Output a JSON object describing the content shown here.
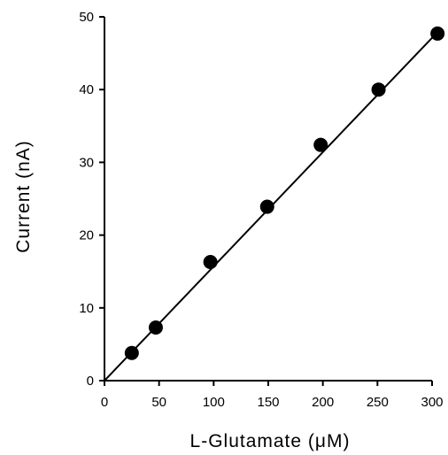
{
  "chart_data": {
    "type": "scatter",
    "title": "",
    "xlabel": "L-Glutamate (μM)",
    "ylabel": "Current (nA)",
    "xlim": [
      0,
      300
    ],
    "ylim": [
      0,
      50
    ],
    "x_ticks": [
      0,
      50,
      100,
      150,
      200,
      250,
      300
    ],
    "y_ticks": [
      0,
      10,
      20,
      30,
      40,
      50
    ],
    "grid": false,
    "series": [
      {
        "x": [
          25,
          47,
          97,
          149,
          198,
          251,
          305
        ],
        "y": [
          3.8,
          7.3,
          16.3,
          23.9,
          32.4,
          40.0,
          47.7
        ]
      }
    ],
    "fit_line": {
      "x": [
        0,
        305
      ],
      "y": [
        0,
        47.9
      ]
    },
    "colors": {
      "marker": "#000000",
      "line": "#000000"
    }
  }
}
